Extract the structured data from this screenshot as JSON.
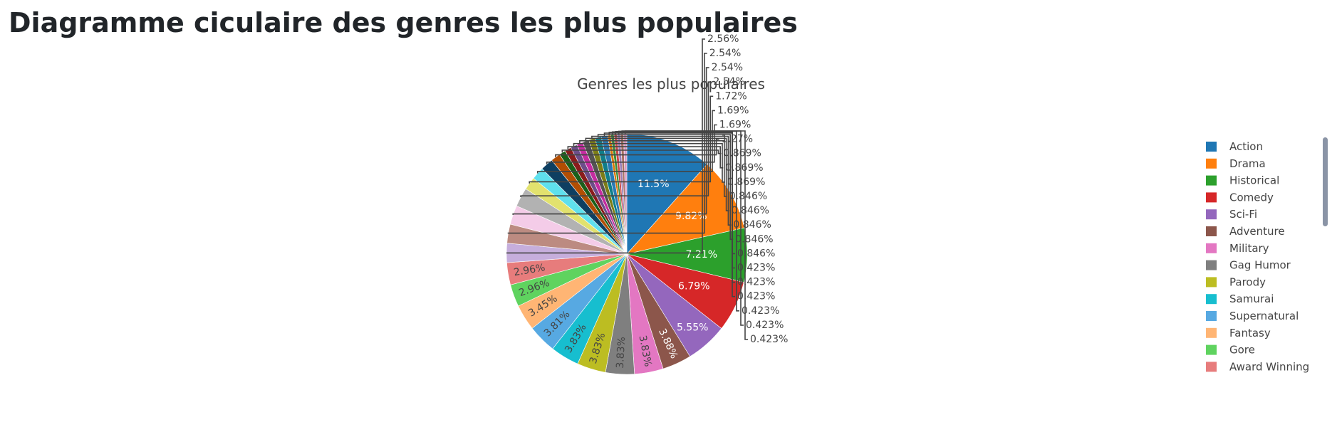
{
  "page": {
    "title": "Diagramme ciculaire des genres les plus populaires"
  },
  "chart_data": {
    "type": "pie",
    "title": "Genres les plus populaires",
    "legend_position": "right",
    "slices": [
      {
        "label": "Action",
        "percent": 11.5,
        "percent_label": "11.5%",
        "color": "#1f77b4"
      },
      {
        "label": "Drama",
        "percent": 9.82,
        "percent_label": "9.82%",
        "color": "#ff7f0e"
      },
      {
        "label": "Historical",
        "percent": 7.21,
        "percent_label": "7.21%",
        "color": "#2ca02c"
      },
      {
        "label": "Comedy",
        "percent": 6.79,
        "percent_label": "6.79%",
        "color": "#d62728"
      },
      {
        "label": "Sci-Fi",
        "percent": 5.55,
        "percent_label": "5.55%",
        "color": "#9467bd"
      },
      {
        "label": "Adventure",
        "percent": 3.88,
        "percent_label": "3.88%",
        "color": "#8c564b"
      },
      {
        "label": "Military",
        "percent": 3.83,
        "percent_label": "3.83%",
        "color": "#e377c2"
      },
      {
        "label": "Gag Humor",
        "percent": 3.83,
        "percent_label": "3.83%",
        "color": "#7f7f7f"
      },
      {
        "label": "Parody",
        "percent": 3.83,
        "percent_label": "3.83%",
        "color": "#bcbd22"
      },
      {
        "label": "Samurai",
        "percent": 3.83,
        "percent_label": "3.83%",
        "color": "#17becf"
      },
      {
        "label": "Supernatural",
        "percent": 3.81,
        "percent_label": "3.81%",
        "color": "#57a9e2"
      },
      {
        "label": "Fantasy",
        "percent": 3.45,
        "percent_label": "3.45%",
        "color": "#ffb574"
      },
      {
        "label": "Gore",
        "percent": 2.96,
        "percent_label": "2.96%",
        "color": "#5fd35f"
      },
      {
        "label": "Award Winning",
        "percent": 2.96,
        "percent_label": "2.96%",
        "color": "#e77c7c"
      },
      {
        "label": "",
        "percent": 2.56,
        "percent_label": "2.56%",
        "color": "#c6aedc"
      },
      {
        "label": "",
        "percent": 2.54,
        "percent_label": "2.54%",
        "color": "#bc8b81"
      },
      {
        "label": "",
        "percent": 2.54,
        "percent_label": "2.54%",
        "color": "#f4cce8"
      },
      {
        "label": "",
        "percent": 2.54,
        "percent_label": "2.54%",
        "color": "#b2b2b2"
      },
      {
        "label": "",
        "percent": 1.72,
        "percent_label": "1.72%",
        "color": "#e2e26e"
      },
      {
        "label": "",
        "percent": 1.69,
        "percent_label": "1.69%",
        "color": "#5fe0ed"
      },
      {
        "label": "",
        "percent": 1.69,
        "percent_label": "1.69%",
        "color": "#0e3f61"
      },
      {
        "label": "",
        "percent": 1.27,
        "percent_label": "1.27%",
        "color": "#b24e03"
      },
      {
        "label": "",
        "percent": 0.869,
        "percent_label": "0.869%",
        "color": "#1a601a"
      },
      {
        "label": "",
        "percent": 0.869,
        "percent_label": "0.869%",
        "color": "#8a1c1c"
      },
      {
        "label": "",
        "percent": 0.869,
        "percent_label": "0.869%",
        "color": "#6d4d89"
      },
      {
        "label": "",
        "percent": 0.846,
        "percent_label": "0.846%",
        "color": "#c42ca0"
      },
      {
        "label": "",
        "percent": 0.846,
        "percent_label": "0.846%",
        "color": "#545454"
      },
      {
        "label": "",
        "percent": 0.846,
        "percent_label": "0.846%",
        "color": "#7c7d16"
      },
      {
        "label": "",
        "percent": 0.846,
        "percent_label": "0.846%",
        "color": "#0f7e8a"
      },
      {
        "label": "",
        "percent": 0.846,
        "percent_label": "0.846%",
        "color": "#2a7ab4"
      },
      {
        "label": "",
        "percent": 0.423,
        "percent_label": "0.423%",
        "color": "#d97706"
      },
      {
        "label": "",
        "percent": 0.423,
        "percent_label": "0.423%",
        "color": "#3a8f3a"
      },
      {
        "label": "",
        "percent": 0.423,
        "percent_label": "0.423%",
        "color": "#c94a4a"
      },
      {
        "label": "",
        "percent": 0.423,
        "percent_label": "0.423%",
        "color": "#9b7fb8"
      },
      {
        "label": "",
        "percent": 0.423,
        "percent_label": "0.423%",
        "color": "#a87064"
      },
      {
        "label": "",
        "percent": 0.423,
        "percent_label": "0.423%",
        "color": "#d99ac4"
      }
    ]
  }
}
